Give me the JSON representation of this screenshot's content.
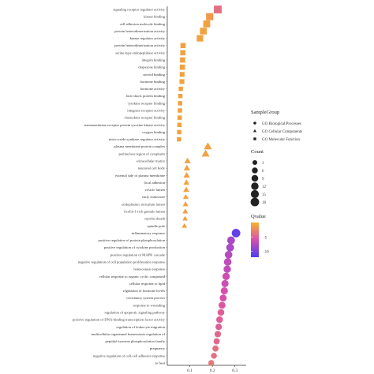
{
  "chart_data": {
    "type": "scatter",
    "title": "",
    "xlabel": "",
    "ylabel": "",
    "xlim": [
      0.0,
      0.35
    ],
    "x_ticks": [
      "0.1",
      "0.2",
      "0.3"
    ],
    "x_tick_values": [
      0.1,
      0.2,
      0.3
    ],
    "grid": false,
    "legend_placement": "right",
    "categories": [
      "signaling receptor regulator activity",
      "kinase binding",
      "cell adhesion molecule binding",
      "protein heterodimerization activity",
      "kinase regulator activity",
      "protein heterodimerization activity",
      "serine-type endopeptidase activity",
      "integrin binding",
      "chaperone binding",
      "steroid binding",
      "hormone binding",
      "hormone activity",
      "heat shock protein binding",
      "cytokine receptor binding",
      "integrase receptor activity",
      "chemokine receptor binding",
      "transmembrane receptor protein tyrosine kinase activity",
      "oxygen binding",
      "nitric-oxide synthase regulator activity",
      "plasma membrane protein complex",
      "perinuclear region of cytoplasm",
      "extracellular matrix",
      "neuronal cell body",
      "external side of plasma membrane",
      "focal adhesion",
      "vesicle lumen",
      "early endosome",
      "endoplasmic reticulum lumen",
      "ficolin-1-rich granule lumen",
      "myelin sheath",
      "spindle pole",
      "inflammatory response",
      "positive regulation of protein phosphorylation",
      "positive regulation of cytokine production",
      "positive regulation of MAPK cascade",
      "negative regulation of cell population proliferation response",
      "homeostasis response",
      "cellular response to organic cyclic compound",
      "cellular response to lipid",
      "regulation of hormone levels",
      "circulatory system process",
      "response to wounding",
      "regulation of apoptotic signaling pathway",
      "positive regulation of DNA-binding transcription factor activity",
      "regulation of leukocyte migration",
      "multicellular organismal homeostasis regulation of",
      "peptidyl-tyrosine phosphorylation family",
      "pregnancy",
      "negative regulation of cell-cell adhesion response",
      "to heat"
    ],
    "series": [
      {
        "name": "GO  Biological    Processes",
        "marker": "circle",
        "points": [
          {
            "category": "inflammatory response",
            "x": 0.305,
            "count": 18,
            "qvalue": -11
          },
          {
            "category": "positive regulation of protein phosphorylation",
            "x": 0.283,
            "count": 14,
            "qvalue": -8
          },
          {
            "category": "positive regulation of cytokine production",
            "x": 0.279,
            "count": 14,
            "qvalue": -8
          },
          {
            "category": "positive regulation of MAPK cascade",
            "x": 0.272,
            "count": 13,
            "qvalue": -7.5
          },
          {
            "category": "negative regulation of cell population proliferation response",
            "x": 0.268,
            "count": 13,
            "qvalue": -7
          },
          {
            "category": "homeostasis response",
            "x": 0.266,
            "count": 12,
            "qvalue": -7
          },
          {
            "category": "cellular response to organic cyclic compound",
            "x": 0.261,
            "count": 12,
            "qvalue": -6.5
          },
          {
            "category": "cellular response to lipid",
            "x": 0.256,
            "count": 11,
            "qvalue": -6.5
          },
          {
            "category": "regulation of hormone levels",
            "x": 0.253,
            "count": 11,
            "qvalue": -6
          },
          {
            "category": "circulatory system process",
            "x": 0.248,
            "count": 10,
            "qvalue": -6
          },
          {
            "category": "response to wounding",
            "x": 0.243,
            "count": 10,
            "qvalue": -5.5
          },
          {
            "category": "regulation of apoptotic signaling pathway",
            "x": 0.238,
            "count": 9,
            "qvalue": -5
          },
          {
            "category": "positive regulation of DNA-binding transcription factor activity",
            "x": 0.232,
            "count": 9,
            "qvalue": -5
          },
          {
            "category": "regulation of leukocyte migration",
            "x": 0.228,
            "count": 8,
            "qvalue": -5
          },
          {
            "category": "multicellular organismal homeostasis regulation of",
            "x": 0.224,
            "count": 8,
            "qvalue": -4.5
          },
          {
            "category": "peptidyl-tyrosine phosphorylation family",
            "x": 0.219,
            "count": 7,
            "qvalue": -4.5
          },
          {
            "category": "pregnancy",
            "x": 0.214,
            "count": 7,
            "qvalue": -4
          },
          {
            "category": "negative regulation of cell-cell adhesion response",
            "x": 0.207,
            "count": 6,
            "qvalue": -4
          },
          {
            "category": "to heat",
            "x": 0.195,
            "count": 6,
            "qvalue": -3.5
          }
        ]
      },
      {
        "name": "GO  Cellular  Components",
        "marker": "triangle",
        "points": [
          {
            "category": "plasma membrane protein complex",
            "x": 0.18,
            "count": 12,
            "qvalue": -1
          },
          {
            "category": "perinuclear region of cytoplasm",
            "x": 0.17,
            "count": 11,
            "qvalue": -1
          },
          {
            "category": "extracellular matrix",
            "x": 0.09,
            "count": 6,
            "qvalue": -1
          },
          {
            "category": "neuronal cell body",
            "x": 0.087,
            "count": 6,
            "qvalue": -1
          },
          {
            "category": "external side of plasma membrane",
            "x": 0.086,
            "count": 6,
            "qvalue": -1
          },
          {
            "category": "focal adhesion",
            "x": 0.085,
            "count": 5,
            "qvalue": -1
          },
          {
            "category": "vesicle lumen",
            "x": 0.084,
            "count": 5,
            "qvalue": -1
          },
          {
            "category": "early endosome",
            "x": 0.082,
            "count": 4,
            "qvalue": -1
          },
          {
            "category": "endoplasmic reticulum lumen",
            "x": 0.081,
            "count": 4,
            "qvalue": -1
          },
          {
            "category": "ficolin-1-rich granule lumen",
            "x": 0.08,
            "count": 4,
            "qvalue": -1
          },
          {
            "category": "myelin sheath",
            "x": 0.079,
            "count": 3,
            "qvalue": -1
          },
          {
            "category": "spindle pole",
            "x": 0.076,
            "count": 3,
            "qvalue": -1
          }
        ]
      },
      {
        "name": "GO  Molecular  Function",
        "marker": "square",
        "points": [
          {
            "category": "signaling receptor regulator activity",
            "x": 0.224,
            "count": 14,
            "qvalue": -4
          },
          {
            "category": "kinase binding",
            "x": 0.188,
            "count": 11,
            "qvalue": -1.5
          },
          {
            "category": "cell adhesion molecule binding",
            "x": 0.175,
            "count": 10,
            "qvalue": -1
          },
          {
            "category": "protein heterodimerization activity",
            "x": 0.16,
            "count": 9,
            "qvalue": -1
          },
          {
            "category": "kinase regulator activity",
            "x": 0.145,
            "count": 8,
            "qvalue": -1
          },
          {
            "category": "protein heterodimerization activity",
            "x": 0.07,
            "count": 4,
            "qvalue": -1
          },
          {
            "category": "serine-type endopeptidase activity",
            "x": 0.069,
            "count": 4,
            "qvalue": -1
          },
          {
            "category": "integrin binding",
            "x": 0.068,
            "count": 4,
            "qvalue": -1
          },
          {
            "category": "chaperone binding",
            "x": 0.067,
            "count": 4,
            "qvalue": -1
          },
          {
            "category": "steroid binding",
            "x": 0.066,
            "count": 3,
            "qvalue": -1
          },
          {
            "category": "hormone binding",
            "x": 0.065,
            "count": 3,
            "qvalue": -1
          },
          {
            "category": "hormone activity",
            "x": 0.06,
            "count": 2,
            "qvalue": -1
          },
          {
            "category": "heat shock protein binding",
            "x": 0.058,
            "count": 2,
            "qvalue": -1
          },
          {
            "category": "cytokine receptor binding",
            "x": 0.057,
            "count": 2,
            "qvalue": -1
          },
          {
            "category": "integrase receptor activity",
            "x": 0.056,
            "count": 2,
            "qvalue": -1
          },
          {
            "category": "chemokine receptor binding",
            "x": 0.055,
            "count": 2,
            "qvalue": -1
          },
          {
            "category": "transmembrane receptor protein tyrosine kinase activity",
            "x": 0.054,
            "count": 2,
            "qvalue": -1
          },
          {
            "category": "oxygen binding",
            "x": 0.053,
            "count": 2,
            "qvalue": -1
          },
          {
            "category": "nitric-oxide synthase regulator activity",
            "x": 0.052,
            "count": 2,
            "qvalue": -1
          }
        ]
      }
    ],
    "legend": {
      "group_title": "SampleGroup",
      "count_title": "Count",
      "count_values": [
        3,
        6,
        9,
        12,
        15,
        18
      ],
      "count_labels": [
        "3",
        "6",
        "9",
        "12",
        "15",
        "18"
      ],
      "qvalue_title": "Qvalue",
      "qvalue_labels": [
        "-5",
        "-10"
      ],
      "qvalue_ticks": [
        -5,
        -10
      ],
      "qvalue_range": [
        -12,
        0
      ],
      "colors": {
        "high": "#f7b12b",
        "mid": "#d94fae",
        "low": "#4a3df2"
      }
    }
  }
}
